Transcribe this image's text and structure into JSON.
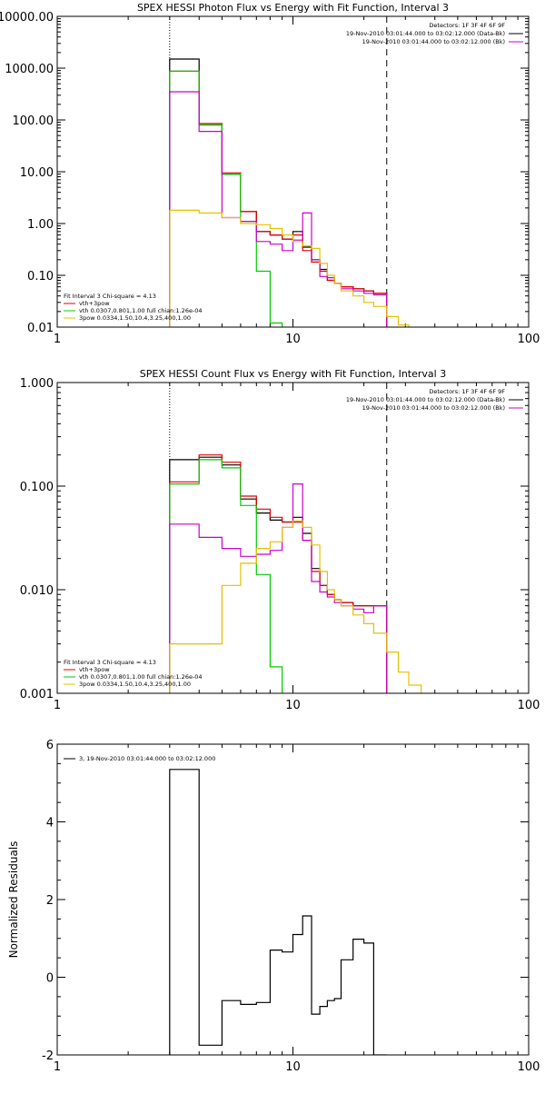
{
  "chart_data": [
    {
      "type": "line",
      "title": "SPEX HESSI Photon Flux vs Energy with Fit Function, Interval 3",
      "xscale": "log",
      "yscale": "log",
      "xlim": [
        1,
        100
      ],
      "ylim": [
        0.01,
        10000
      ],
      "xticks": [
        {
          "v": 1,
          "label": "1"
        },
        {
          "v": 10,
          "label": "10"
        },
        {
          "v": 100,
          "label": "100"
        }
      ],
      "yticks": [
        {
          "v": 0.01,
          "label": "0.01"
        },
        {
          "v": 0.1,
          "label": "0.10"
        },
        {
          "v": 1,
          "label": "1.00"
        },
        {
          "v": 10,
          "label": "10.00"
        },
        {
          "v": 100,
          "label": "100.00"
        },
        {
          "v": 1000,
          "label": "1000.00"
        },
        {
          "v": 10000,
          "label": "10000.00"
        }
      ],
      "vlines": [
        {
          "x": 3,
          "style": "dotted"
        },
        {
          "x": 25,
          "style": "dashed"
        }
      ],
      "info_lines": [
        "Detectors: 1F 3F 4F 6F 9F",
        "19-Nov-2010 03:01:44.000 to 03:02:12.000 (Data-Bk)",
        "19-Nov-2010 03:01:44.000 to 03:02:12.000 (Bk)"
      ],
      "info_colors": [
        "#000000",
        "#000000",
        "#cc00cc"
      ],
      "legend_lines": [
        "Fit Interval 3   Chi-square = 4.13",
        "vth+3pow",
        "vth 0.0307,0.801,1.00  full chian:1.26e-04",
        "3pow 0.0334,1.50,10.4,3.25,400,1.00"
      ],
      "legend_colors": [
        "#000000",
        "#e00000",
        "#00cc00",
        "#e6c000"
      ],
      "series": [
        {
          "color": "#000000",
          "edges": [
            3,
            4,
            5,
            6,
            7,
            8,
            9,
            10,
            11,
            12,
            13,
            14,
            15,
            16,
            18,
            20,
            22,
            25
          ],
          "values": [
            1500,
            80,
            9,
            1.7,
            0.7,
            0.6,
            0.5,
            0.7,
            0.35,
            0.2,
            0.13,
            0.08,
            0.07,
            0.06,
            0.055,
            0.05,
            0.045
          ]
        },
        {
          "color": "#e00000",
          "edges": [
            3,
            4,
            5,
            6,
            7,
            8,
            9,
            10,
            11,
            12,
            13,
            14,
            15,
            16,
            18,
            20,
            22,
            25
          ],
          "values": [
            870,
            85,
            9.5,
            1.7,
            0.7,
            0.6,
            0.5,
            0.6,
            0.3,
            0.18,
            0.12,
            0.08,
            0.07,
            0.06,
            0.055,
            0.05,
            0.045
          ]
        },
        {
          "color": "#00cc00",
          "edges": [
            3,
            4,
            5,
            6,
            7,
            8,
            9
          ],
          "values": [
            870,
            80,
            9,
            1.1,
            0.12,
            0.012
          ]
        },
        {
          "color": "#cc00cc",
          "edges": [
            3,
            4,
            5,
            6,
            7,
            8,
            9,
            10,
            11,
            12,
            13,
            14,
            15,
            16,
            18,
            20,
            22,
            25
          ],
          "values": [
            350,
            60,
            1.3,
            1.1,
            0.45,
            0.4,
            0.3,
            0.48,
            1.6,
            0.2,
            0.095,
            0.09,
            0.07,
            0.055,
            0.05,
            0.045,
            0.042
          ]
        },
        {
          "color": "#e6c000",
          "edges": [
            3,
            4,
            5,
            6,
            7,
            8,
            9,
            10,
            11,
            12,
            13,
            14,
            15,
            16,
            18,
            20,
            22,
            25,
            28,
            31
          ],
          "values": [
            1.8,
            1.6,
            1.3,
            1.0,
            0.95,
            0.8,
            0.6,
            0.45,
            0.37,
            0.33,
            0.17,
            0.1,
            0.07,
            0.05,
            0.04,
            0.03,
            0.025,
            0.016,
            0.011
          ]
        }
      ]
    },
    {
      "type": "line",
      "title": "SPEX HESSI Count Flux vs Energy with Fit Function, Interval 3",
      "xscale": "log",
      "yscale": "log",
      "xlim": [
        1,
        100
      ],
      "ylim": [
        0.001,
        1
      ],
      "xticks": [
        {
          "v": 1,
          "label": "1"
        },
        {
          "v": 10,
          "label": "10"
        },
        {
          "v": 100,
          "label": "100"
        }
      ],
      "yticks": [
        {
          "v": 0.001,
          "label": "0.001"
        },
        {
          "v": 0.01,
          "label": "0.010"
        },
        {
          "v": 0.1,
          "label": "0.100"
        },
        {
          "v": 1,
          "label": "1.000"
        }
      ],
      "vlines": [
        {
          "x": 3,
          "style": "dotted"
        },
        {
          "x": 25,
          "style": "dashed"
        }
      ],
      "info_lines": [
        "Detectors: 1F 3F 4F 6F 9F",
        "19-Nov-2010 03:01:44.000 to 03:02:12.000 (Data-Bk)",
        "19-Nov-2010 03:01:44.000 to 03:02:12.000 (Bk)"
      ],
      "info_colors": [
        "#000000",
        "#000000",
        "#cc00cc"
      ],
      "legend_lines": [
        "Fit Interval 3   Chi-square = 4.13",
        "vth+3pow",
        "vth 0.0307,0.801,1.00  full chian:1.26e-04",
        "3pow 0.0334,1.50,10.4,3.25,400,1.00"
      ],
      "legend_colors": [
        "#000000",
        "#e00000",
        "#00cc00",
        "#e6c000"
      ],
      "series": [
        {
          "color": "#000000",
          "edges": [
            3,
            4,
            5,
            6,
            7,
            8,
            9,
            10,
            11,
            12,
            13,
            14,
            15,
            16,
            18,
            20,
            22,
            25
          ],
          "values": [
            0.18,
            0.19,
            0.16,
            0.075,
            0.055,
            0.047,
            0.045,
            0.05,
            0.035,
            0.016,
            0.011,
            0.009,
            0.008,
            0.0075,
            0.007,
            0.007,
            0.007
          ]
        },
        {
          "color": "#e00000",
          "edges": [
            3,
            4,
            5,
            6,
            7,
            8,
            9,
            10,
            11,
            12,
            13,
            14,
            15,
            16,
            18,
            20,
            22,
            25
          ],
          "values": [
            0.11,
            0.2,
            0.17,
            0.08,
            0.06,
            0.05,
            0.045,
            0.045,
            0.03,
            0.015,
            0.011,
            0.009,
            0.008,
            0.0075,
            0.007,
            0.007,
            0.007
          ]
        },
        {
          "color": "#00cc00",
          "edges": [
            3,
            4,
            5,
            6,
            7,
            8,
            9
          ],
          "values": [
            0.105,
            0.18,
            0.15,
            0.065,
            0.014,
            0.0018
          ]
        },
        {
          "color": "#cc00cc",
          "edges": [
            3,
            4,
            5,
            6,
            7,
            8,
            9,
            10,
            11,
            12,
            13,
            14,
            15,
            16,
            18,
            20,
            22,
            25
          ],
          "values": [
            0.043,
            0.032,
            0.025,
            0.021,
            0.022,
            0.024,
            0.04,
            0.105,
            0.03,
            0.012,
            0.0095,
            0.0085,
            0.0075,
            0.007,
            0.0065,
            0.006,
            0.007
          ]
        },
        {
          "color": "#e6c000",
          "edges": [
            3,
            4,
            5,
            6,
            7,
            8,
            9,
            10,
            11,
            12,
            13,
            14,
            15,
            16,
            18,
            20,
            22,
            25,
            28,
            31,
            35
          ],
          "values": [
            0.003,
            0.003,
            0.011,
            0.018,
            0.025,
            0.029,
            0.04,
            0.046,
            0.04,
            0.027,
            0.015,
            0.01,
            0.008,
            0.007,
            0.0057,
            0.0047,
            0.0038,
            0.0025,
            0.0016,
            0.0012
          ]
        }
      ]
    },
    {
      "type": "line",
      "title": "",
      "ylabel": "Normalized Residuals",
      "xscale": "log",
      "yscale": "linear",
      "xlim": [
        1,
        100
      ],
      "ylim": [
        -2,
        6
      ],
      "xticks": [
        {
          "v": 1,
          "label": "1"
        },
        {
          "v": 10,
          "label": "10"
        },
        {
          "v": 100,
          "label": "100"
        }
      ],
      "yticks": [
        {
          "v": -2,
          "label": "-2"
        },
        {
          "v": 0,
          "label": "0"
        },
        {
          "v": 2,
          "label": "2"
        },
        {
          "v": 4,
          "label": "4"
        },
        {
          "v": 6,
          "label": "6"
        }
      ],
      "legend_lines": [
        "3, 19-Nov-2010 03:01:44.000 to 03:02:12.000"
      ],
      "legend_colors": [
        "#000000"
      ],
      "series": [
        {
          "color": "#000000",
          "edges": [
            3,
            4,
            5,
            6,
            7,
            8,
            9,
            10,
            11,
            12,
            13,
            14,
            15,
            16,
            18,
            20,
            22,
            25
          ],
          "values": [
            5.35,
            -1.75,
            -0.6,
            -0.7,
            -0.65,
            0.7,
            0.65,
            1.1,
            1.58,
            -0.95,
            -0.75,
            -0.6,
            -0.55,
            0.45,
            0.98,
            0.88,
            -2.0
          ]
        }
      ]
    }
  ]
}
